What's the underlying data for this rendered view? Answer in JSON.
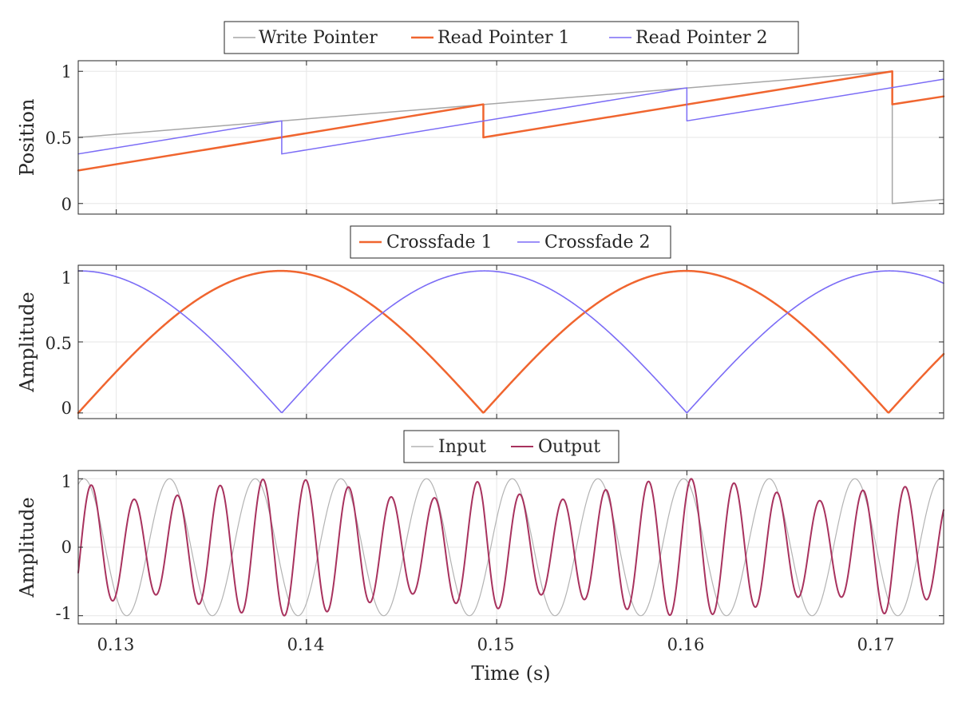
{
  "chart_data": [
    {
      "type": "line",
      "ylabel": "Position",
      "xlim": [
        0.128,
        0.1735
      ],
      "ylim": [
        -0.08,
        1.08
      ],
      "yticks": [
        0,
        0.5,
        1
      ],
      "ytick_labels": [
        "0",
        "0.5",
        "1"
      ],
      "grid": true,
      "legend_position": "top-center",
      "series": [
        {
          "name": "Write Pointer",
          "color": "#a6a6a6",
          "x": [
            0.128,
            0.1708,
            0.1708,
            0.1735
          ],
          "y": [
            0.5,
            1.0,
            0.0,
            0.03
          ]
        },
        {
          "name": "Read Pointer 1",
          "color": "#f0652f",
          "x": [
            0.128,
            0.1493,
            0.1493,
            0.1708,
            0.1708,
            0.1735
          ],
          "y": [
            0.25,
            0.75,
            0.5,
            1.0,
            0.75,
            0.81
          ]
        },
        {
          "name": "Read Pointer 2",
          "color": "#7b6cf6",
          "x": [
            0.128,
            0.1387,
            0.1387,
            0.16,
            0.16,
            0.1735
          ],
          "y": [
            0.375,
            0.625,
            0.375,
            0.875,
            0.625,
            0.94
          ]
        }
      ]
    },
    {
      "type": "line",
      "ylabel": "Amplitude",
      "xlim": [
        0.128,
        0.1735
      ],
      "ylim": [
        -0.04,
        1.04
      ],
      "yticks": [
        0,
        0.5,
        1
      ],
      "ytick_labels": [
        "0",
        "0.5",
        "1"
      ],
      "grid": true,
      "legend_position": "top-center",
      "series": [
        {
          "name": "Crossfade 1",
          "color": "#f0652f",
          "zeros": [
            0.128,
            0.1493,
            0.1708
          ]
        },
        {
          "name": "Crossfade 2",
          "color": "#7b6cf6",
          "zeros": [
            0.1387,
            0.16
          ]
        }
      ]
    },
    {
      "type": "line",
      "ylabel": "Amplitude",
      "xlabel": "Time (s)",
      "xlim": [
        0.128,
        0.1735
      ],
      "ylim": [
        -1.12,
        1.12
      ],
      "yticks": [
        -1,
        0,
        1
      ],
      "ytick_labels": [
        "-1",
        "0",
        "1"
      ],
      "xticks": [
        0.13,
        0.14,
        0.15,
        0.16,
        0.17
      ],
      "xtick_labels": [
        "0.13",
        "0.14",
        "0.15",
        "0.16",
        "0.17"
      ],
      "grid": true,
      "legend_position": "top-center",
      "series": [
        {
          "name": "Input",
          "color": "#b3b3b3",
          "amplitude": 1.0,
          "frequency_hz": 222,
          "peak_time": 0.1328
        },
        {
          "name": "Output",
          "color": "#a8325e",
          "frequency_hz": 444,
          "first_peak_time": 0.1287,
          "envelope_min": 0.68,
          "envelope_max": 1.0
        }
      ]
    }
  ]
}
